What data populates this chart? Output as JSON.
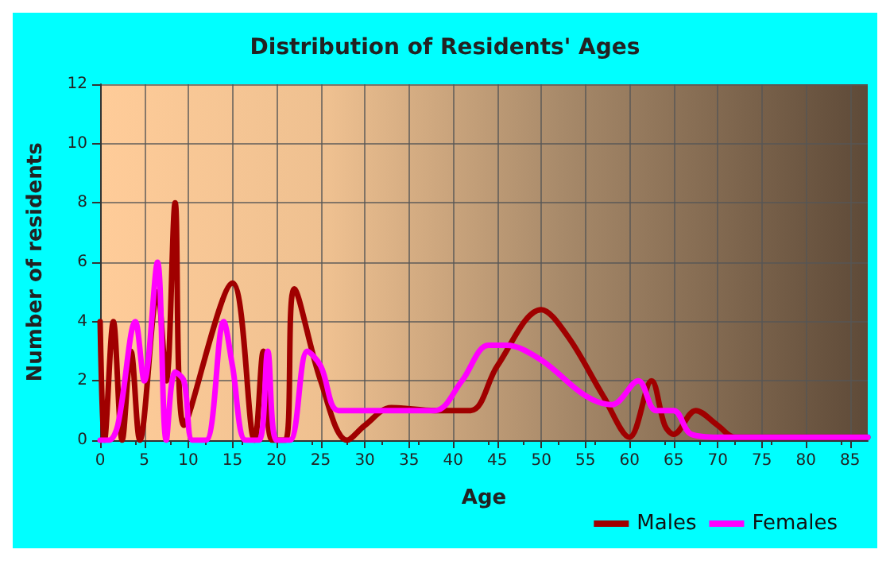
{
  "chart_data": {
    "type": "line",
    "title": "Distribution of Residents' Ages",
    "xlabel": "Age",
    "ylabel": "Number of residents",
    "xlim": [
      0,
      87
    ],
    "xticks": [
      0,
      5,
      10,
      15,
      20,
      25,
      30,
      35,
      40,
      45,
      50,
      55,
      60,
      65,
      70,
      75,
      80,
      85
    ],
    "ylim": [
      0,
      12
    ],
    "yticks": [
      0,
      2,
      4,
      6,
      8,
      10,
      12
    ],
    "grid": true,
    "legend": "bottom right",
    "marker": "none",
    "line_style": "solid",
    "series": [
      {
        "name": "Males",
        "color": "#a00000",
        "x": [
          0,
          0.5,
          1.5,
          2.5,
          3.5,
          4.5,
          6.5,
          7.5,
          8.5,
          9.5,
          15,
          17.5,
          18.5,
          19.5,
          21,
          22,
          25,
          28,
          30,
          33,
          38,
          42,
          45,
          50,
          53,
          57,
          60,
          62.5,
          64,
          65,
          67.5,
          70,
          72,
          87
        ],
        "values": [
          4,
          0,
          4,
          0,
          3,
          0,
          5,
          2,
          8,
          0.5,
          5.3,
          0,
          3,
          0,
          0,
          5.1,
          2,
          0,
          0.5,
          1.1,
          1,
          1,
          2.5,
          4.4,
          3.5,
          1.5,
          0.1,
          2,
          0.5,
          0.2,
          1,
          0.5,
          0.1,
          0.1
        ]
      },
      {
        "name": "Females",
        "color": "#ff00ff",
        "x": [
          0,
          1,
          2,
          4,
          5,
          6.5,
          7.5,
          8.5,
          9.5,
          10.5,
          12,
          14,
          15,
          16.5,
          18,
          19,
          20,
          21.5,
          23.5,
          25,
          27,
          30,
          35,
          38,
          41,
          44,
          46,
          50,
          55,
          58,
          61,
          63,
          65,
          67,
          70,
          87
        ],
        "values": [
          0,
          0,
          0.5,
          4,
          2,
          6,
          0,
          2.3,
          2,
          0,
          0,
          4,
          2.5,
          0,
          0,
          3,
          0,
          0,
          3,
          2.5,
          1,
          1,
          1,
          1,
          2,
          3.2,
          3.2,
          2.7,
          1.5,
          1.2,
          2,
          1,
          1,
          0.2,
          0.1,
          0.1
        ]
      }
    ]
  }
}
